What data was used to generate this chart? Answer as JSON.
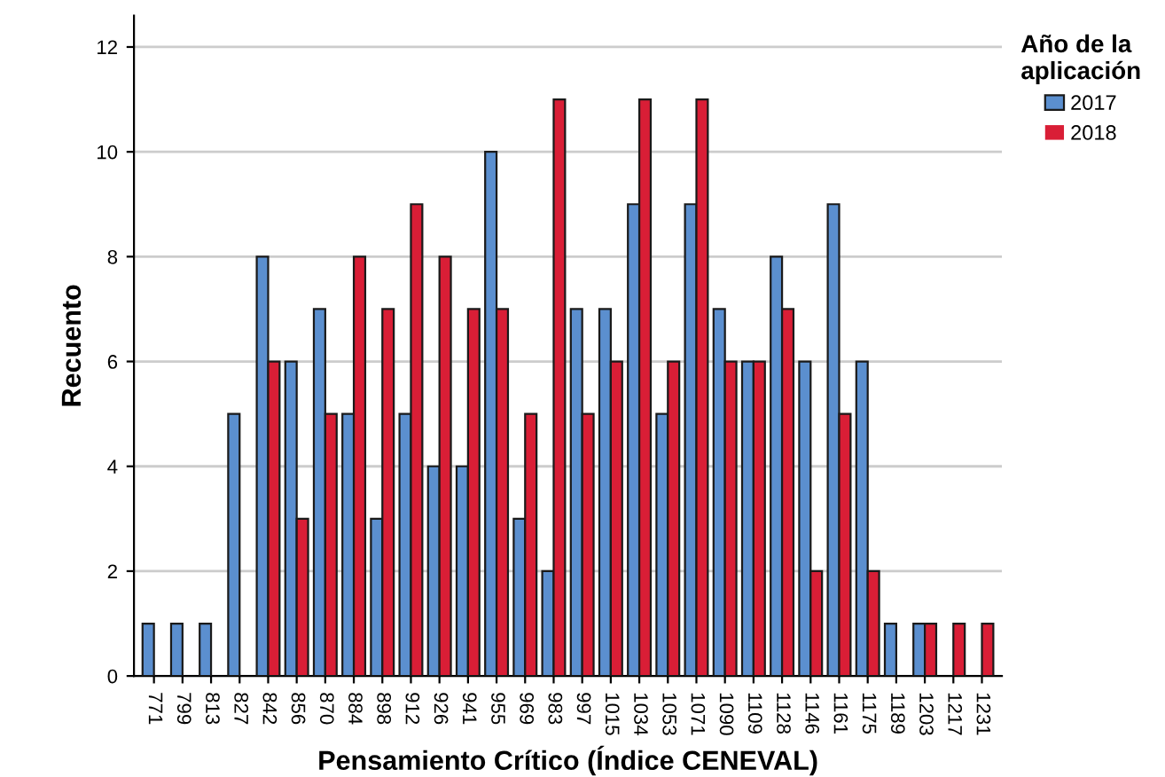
{
  "chart_data": {
    "type": "bar",
    "xlabel": "Pensamiento Crítico (Índice CENEVAL)",
    "ylabel": "Recuento",
    "legend_title": "Año de la\naplicación",
    "categories": [
      "771",
      "799",
      "813",
      "827",
      "842",
      "856",
      "870",
      "884",
      "898",
      "912",
      "926",
      "941",
      "955",
      "969",
      "983",
      "997",
      "1015",
      "1034",
      "1053",
      "1071",
      "1090",
      "1109",
      "1128",
      "1146",
      "1161",
      "1175",
      "1189",
      "1203",
      "1217",
      "1231"
    ],
    "series": [
      {
        "name": "2017",
        "color": "#5b8fcf",
        "values": [
          1,
          1,
          1,
          5,
          8,
          6,
          7,
          5,
          3,
          5,
          4,
          4,
          10,
          3,
          2,
          7,
          7,
          9,
          5,
          9,
          7,
          6,
          8,
          6,
          9,
          6,
          1,
          1,
          0,
          0
        ]
      },
      {
        "name": "2018",
        "color": "#d91e36",
        "values": [
          0,
          0,
          0,
          0,
          6,
          3,
          5,
          8,
          7,
          9,
          8,
          7,
          7,
          5,
          11,
          5,
          6,
          11,
          6,
          11,
          6,
          6,
          7,
          2,
          5,
          2,
          0,
          1,
          1,
          1
        ]
      }
    ],
    "ylim": [
      0,
      12.6
    ],
    "yticks": [
      0,
      2,
      4,
      6,
      8,
      10,
      12
    ],
    "grid": "y",
    "legend": "top right"
  }
}
